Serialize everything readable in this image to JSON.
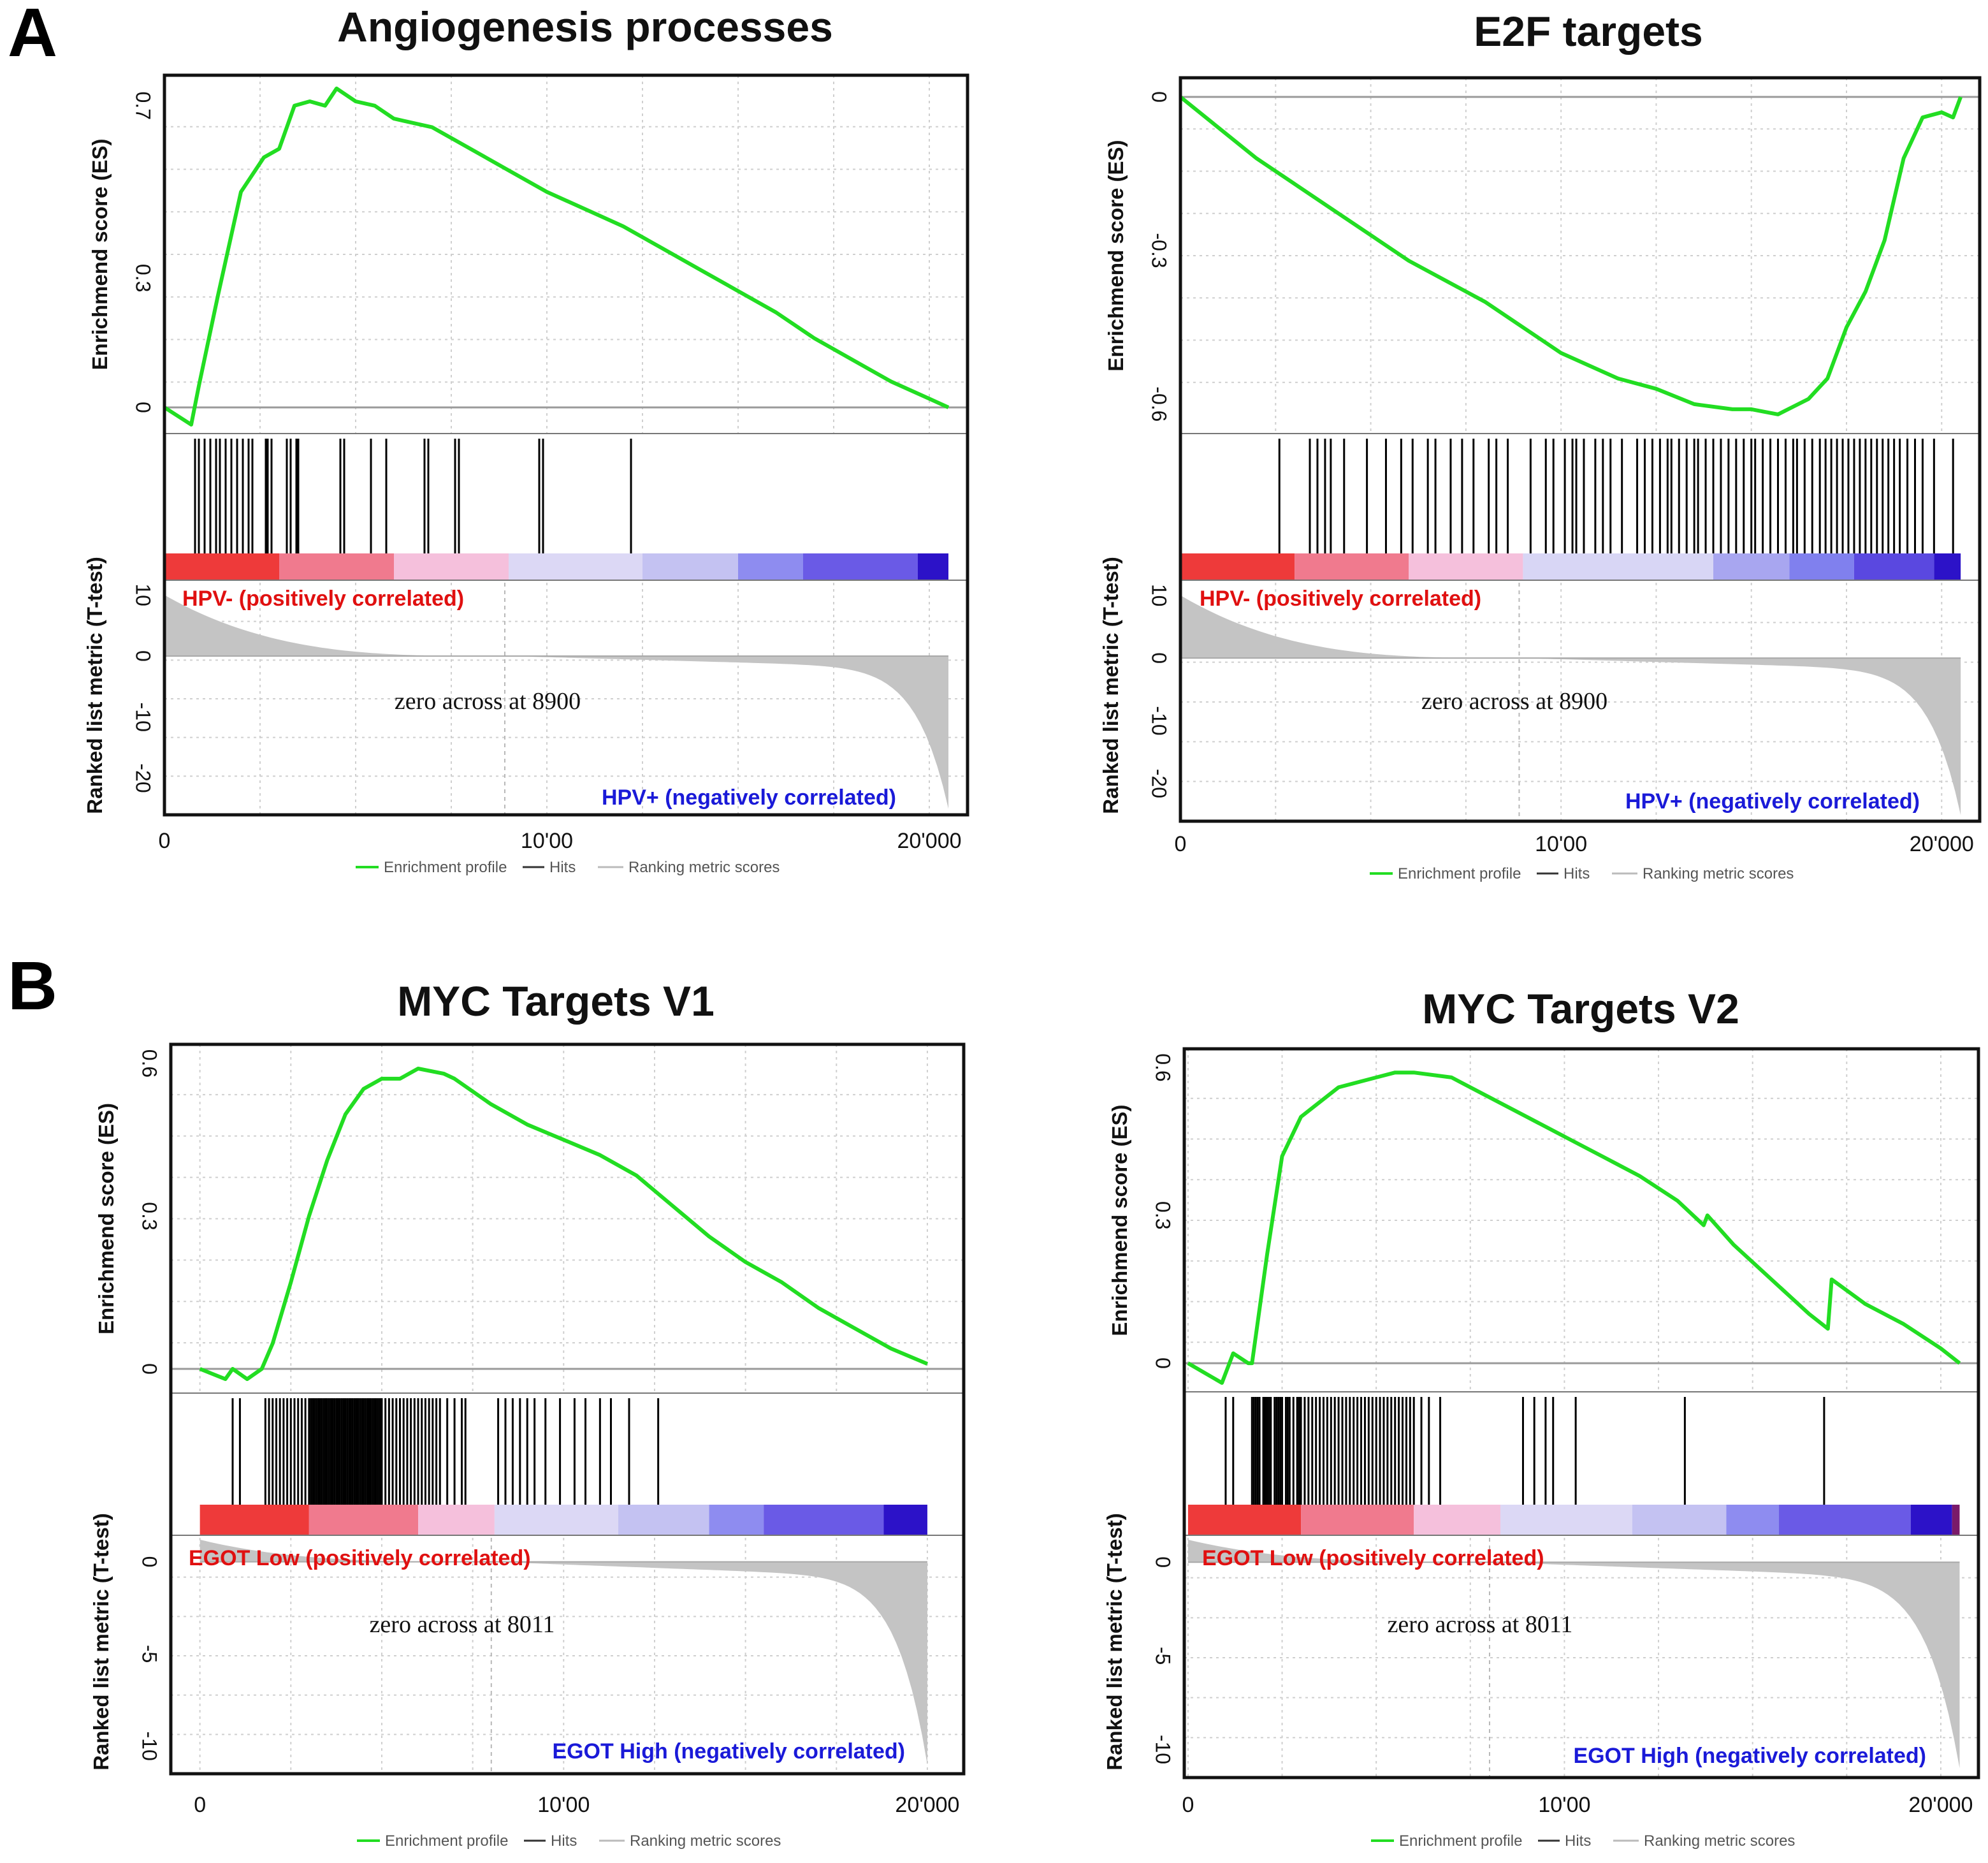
{
  "figure": {
    "panel_labels": [
      "A",
      "B"
    ],
    "legend": {
      "enrichment": "Enrichment profile",
      "hits": "Hits",
      "ranking": "Ranking metric scores"
    }
  },
  "colors": {
    "es_line": "#22dd22",
    "hit": "#000000",
    "metric_fill": "#c4c4c4",
    "pos_label": "#e01010",
    "neg_label": "#1a1ad8",
    "frame": "#111111",
    "grid": "#cfcfcf"
  },
  "chart_data": [
    {
      "type": "line",
      "title": "Angiogenesis processes",
      "ylabel_es": "Enrichmend  score (ES)",
      "ylabel_metric": "Ranked list metric (T-test)",
      "es_ticks": [
        {
          "v": 0,
          "label": "0"
        },
        {
          "v": 0.3,
          "label": "0.3"
        },
        {
          "v": 0.7,
          "label": "0.7"
        }
      ],
      "es_range": [
        -0.04,
        0.75
      ],
      "metric_ticks": [
        {
          "v": 10,
          "label": "10"
        },
        {
          "v": 0,
          "label": "0"
        },
        {
          "v": -10,
          "label": "-10"
        },
        {
          "v": -20,
          "label": "-20"
        }
      ],
      "metric_range": [
        -26,
        12
      ],
      "xlim": [
        0,
        21000
      ],
      "n_genes": 20500,
      "xticks": [
        {
          "v": 0,
          "label": "0"
        },
        {
          "v": 10000,
          "label": "10'00"
        },
        {
          "v": 20000,
          "label": "20'000"
        }
      ],
      "pos_label": "HPV- (positively correlated)",
      "neg_label": "HPV+ (negatively correlated)",
      "zero_cross": 8900,
      "zero_cross_label": "zero across at 8900",
      "metric_max": 10,
      "metric_min": -25,
      "es_curve": {
        "x": [
          0,
          700,
          900,
          1400,
          2000,
          2600,
          3000,
          3200,
          3400,
          3800,
          4200,
          4500,
          5000,
          5500,
          6000,
          7000,
          8000,
          9000,
          10000,
          11000,
          12000,
          13000,
          14000,
          15000,
          16000,
          17000,
          18000,
          19000,
          20000,
          20500
        ],
        "y": [
          0,
          -0.04,
          0.05,
          0.26,
          0.5,
          0.58,
          0.6,
          0.65,
          0.7,
          0.71,
          0.7,
          0.74,
          0.71,
          0.7,
          0.67,
          0.65,
          0.6,
          0.55,
          0.5,
          0.46,
          0.42,
          0.37,
          0.32,
          0.27,
          0.22,
          0.16,
          0.11,
          0.06,
          0.02,
          0
        ]
      },
      "hits": [
        800,
        900,
        1050,
        1200,
        1350,
        1450,
        1600,
        1750,
        1900,
        2050,
        2200,
        2300,
        2650,
        2700,
        2800,
        3200,
        3300,
        3450,
        3500,
        4600,
        4700,
        5400,
        5800,
        6800,
        6900,
        7600,
        7700,
        9800,
        9900,
        12200
      ],
      "colorbar": [
        {
          "from": 0,
          "to": 3000,
          "color": "#ee3a3a"
        },
        {
          "from": 3000,
          "to": 6000,
          "color": "#f07a8e"
        },
        {
          "from": 6000,
          "to": 9000,
          "color": "#f5c0dc"
        },
        {
          "from": 9000,
          "to": 12500,
          "color": "#dcd8f5"
        },
        {
          "from": 12500,
          "to": 15000,
          "color": "#c4c2f2"
        },
        {
          "from": 15000,
          "to": 16700,
          "color": "#8e8cf0"
        },
        {
          "from": 16700,
          "to": 19700,
          "color": "#6a5ae6"
        },
        {
          "from": 19700,
          "to": 20500,
          "color": "#2c12c8"
        }
      ]
    },
    {
      "type": "line",
      "title": "E2F targets",
      "ylabel_es": "Enrichmend  score (ES)",
      "ylabel_metric": "Ranked list metric (T-test)",
      "es_ticks": [
        {
          "v": 0,
          "label": "0"
        },
        {
          "v": -0.3,
          "label": "-0.3"
        },
        {
          "v": -0.6,
          "label": "-0.6"
        }
      ],
      "es_range": [
        -0.64,
        0.02
      ],
      "metric_ticks": [
        {
          "v": 10,
          "label": "10"
        },
        {
          "v": 0,
          "label": "0"
        },
        {
          "v": -10,
          "label": "-10"
        },
        {
          "v": -20,
          "label": "-20"
        }
      ],
      "metric_range": [
        -26,
        12
      ],
      "xlim": [
        0,
        21000
      ],
      "n_genes": 20500,
      "xticks": [
        {
          "v": 0,
          "label": "0"
        },
        {
          "v": 10000,
          "label": "10'00"
        },
        {
          "v": 20000,
          "label": "20'000"
        }
      ],
      "pos_label": "HPV- (positively correlated)",
      "neg_label": "HPV+ (negatively correlated)",
      "zero_cross": 8900,
      "zero_cross_label": "zero across at 8900",
      "metric_max": 10,
      "metric_min": -25,
      "es_curve": {
        "x": [
          0,
          2000,
          4000,
          6000,
          8000,
          10000,
          11500,
          12500,
          13500,
          14500,
          15000,
          15700,
          16500,
          17000,
          17500,
          18000,
          18500,
          19000,
          19500,
          20000,
          20300,
          20500
        ],
        "y": [
          0,
          -0.12,
          -0.22,
          -0.32,
          -0.4,
          -0.5,
          -0.55,
          -0.57,
          -0.6,
          -0.61,
          -0.61,
          -0.62,
          -0.59,
          -0.55,
          -0.45,
          -0.38,
          -0.28,
          -0.12,
          -0.04,
          -0.03,
          -0.04,
          0
        ]
      },
      "hits": [
        2600,
        3400,
        3600,
        3800,
        3950,
        4300,
        4900,
        5400,
        5800,
        6100,
        6500,
        6700,
        7100,
        7400,
        7700,
        8100,
        8300,
        8600,
        9200,
        9600,
        9800,
        10100,
        10300,
        10400,
        10600,
        10900,
        11100,
        11300,
        11600,
        12000,
        12200,
        12400,
        12600,
        12800,
        12900,
        13100,
        13300,
        13500,
        13600,
        13800,
        14000,
        14200,
        14400,
        14600,
        14800,
        15000,
        15100,
        15300,
        15500,
        15700,
        15900,
        16100,
        16200,
        16400,
        16600,
        16800,
        16950,
        17100,
        17250,
        17400,
        17550,
        17700,
        17850,
        18000,
        18150,
        18300,
        18450,
        18600,
        18750,
        18900,
        19100,
        19300,
        19500,
        19800,
        20300
      ],
      "colorbar": [
        {
          "from": 0,
          "to": 3000,
          "color": "#ee3a3a"
        },
        {
          "from": 3000,
          "to": 6000,
          "color": "#f07a8e"
        },
        {
          "from": 6000,
          "to": 9000,
          "color": "#f5c0dc"
        },
        {
          "from": 9000,
          "to": 14000,
          "color": "#d8d6f5"
        },
        {
          "from": 14000,
          "to": 16000,
          "color": "#a8a6f0"
        },
        {
          "from": 16000,
          "to": 17700,
          "color": "#8080ee"
        },
        {
          "from": 17700,
          "to": 19800,
          "color": "#5a48e0"
        },
        {
          "from": 19800,
          "to": 20500,
          "color": "#2c12c8"
        }
      ]
    },
    {
      "type": "line",
      "title": "MYC Targets V1",
      "ylabel_es": "Enrichmend  score (ES)",
      "ylabel_metric": "Ranked list metric (T-test)",
      "es_ticks": [
        {
          "v": 0,
          "label": "0"
        },
        {
          "v": 0.3,
          "label": "0.3"
        },
        {
          "v": 0.6,
          "label": "0.6"
        }
      ],
      "es_range": [
        -0.03,
        0.62
      ],
      "metric_ticks": [
        {
          "v": 0,
          "label": "0"
        },
        {
          "v": -5,
          "label": "-5"
        },
        {
          "v": -10,
          "label": "-10"
        }
      ],
      "metric_range": [
        -11.5,
        1.3
      ],
      "xlim": [
        -800,
        21000
      ],
      "n_genes": 20000,
      "xticks": [
        {
          "v": 0,
          "label": "0"
        },
        {
          "v": 10000,
          "label": "10'00"
        },
        {
          "v": 20000,
          "label": "20'000"
        }
      ],
      "pos_label": "EGOT Low (positively correlated)",
      "neg_label": "EGOT High (negatively correlated)",
      "zero_cross": 8011,
      "zero_cross_label": "zero across at 8011",
      "metric_max": 1.2,
      "metric_min": -11,
      "es_curve": {
        "x": [
          0,
          700,
          900,
          1300,
          1700,
          2000,
          2500,
          3000,
          3500,
          4000,
          4500,
          5000,
          5500,
          6000,
          6700,
          7000,
          8000,
          9000,
          10000,
          11000,
          12000,
          13000,
          14000,
          15000,
          16000,
          17000,
          18000,
          19000,
          20000
        ],
        "y": [
          0,
          -0.02,
          0.0,
          -0.02,
          0.0,
          0.05,
          0.17,
          0.3,
          0.41,
          0.5,
          0.55,
          0.57,
          0.57,
          0.59,
          0.58,
          0.57,
          0.52,
          0.48,
          0.45,
          0.42,
          0.38,
          0.32,
          0.26,
          0.21,
          0.17,
          0.12,
          0.08,
          0.04,
          0.01
        ]
      },
      "hits": [
        900,
        1100,
        1800,
        1900,
        2000,
        2100,
        2200,
        2300,
        2400,
        2500,
        2600,
        2700,
        2800,
        2900,
        3000,
        3050,
        3100,
        3150,
        3200,
        3250,
        3300,
        3350,
        3400,
        3450,
        3500,
        3550,
        3600,
        3650,
        3700,
        3750,
        3800,
        3850,
        3900,
        3950,
        4000,
        4050,
        4100,
        4150,
        4200,
        4250,
        4300,
        4350,
        4400,
        4450,
        4500,
        4550,
        4600,
        4650,
        4700,
        4750,
        4800,
        4850,
        4900,
        4950,
        5000,
        5100,
        5200,
        5300,
        5400,
        5500,
        5600,
        5700,
        5800,
        5900,
        6000,
        6100,
        6200,
        6300,
        6400,
        6500,
        6600,
        6800,
        7000,
        7200,
        7300,
        8200,
        8400,
        8600,
        8800,
        9000,
        9200,
        9500,
        9900,
        10300,
        10600,
        11000,
        11300,
        11800,
        12600
      ],
      "colorbar": [
        {
          "from": 0,
          "to": 3000,
          "color": "#ee3a3a"
        },
        {
          "from": 3000,
          "to": 6000,
          "color": "#f07a8e"
        },
        {
          "from": 6000,
          "to": 8100,
          "color": "#f5c0dc"
        },
        {
          "from": 8100,
          "to": 11500,
          "color": "#dcd8f5"
        },
        {
          "from": 11500,
          "to": 14000,
          "color": "#c4c2f2"
        },
        {
          "from": 14000,
          "to": 15500,
          "color": "#8e8cf0"
        },
        {
          "from": 15500,
          "to": 18800,
          "color": "#6a5ae6"
        },
        {
          "from": 18800,
          "to": 20000,
          "color": "#2c12c8"
        }
      ]
    },
    {
      "type": "line",
      "title": "MYC Targets V2",
      "ylabel_es": "Enrichmend  score (ES)",
      "ylabel_metric": "Ranked list metric (T-test)",
      "es_ticks": [
        {
          "v": 0,
          "label": "0"
        },
        {
          "v": 0.3,
          "label": "0.3"
        },
        {
          "v": 0.6,
          "label": "0.6"
        }
      ],
      "es_range": [
        -0.04,
        0.62
      ],
      "metric_ticks": [
        {
          "v": 0,
          "label": "0"
        },
        {
          "v": -5,
          "label": "-5"
        },
        {
          "v": -10,
          "label": "-10"
        }
      ],
      "metric_range": [
        -11.5,
        1.3
      ],
      "xlim": [
        -100,
        21000
      ],
      "n_genes": 20500,
      "xticks": [
        {
          "v": 0,
          "label": "0"
        },
        {
          "v": 10000,
          "label": "10'00"
        },
        {
          "v": 20000,
          "label": "20'000"
        }
      ],
      "pos_label": "EGOT Low (positively correlated)",
      "neg_label": "EGOT High (negatively correlated)",
      "zero_cross": 8011,
      "zero_cross_label": "zero across at 8011",
      "metric_max": 1.2,
      "metric_min": -11,
      "es_curve": {
        "x": [
          0,
          900,
          1200,
          1600,
          1700,
          2100,
          2500,
          3000,
          3500,
          4000,
          4500,
          5000,
          5500,
          6000,
          7000,
          8000,
          9000,
          10000,
          11000,
          12000,
          13000,
          13700,
          13800,
          14500,
          15500,
          16500,
          17000,
          17100,
          18000,
          19000,
          20000,
          20500
        ],
        "y": [
          0,
          -0.04,
          0.02,
          0.0,
          0.0,
          0.22,
          0.42,
          0.5,
          0.53,
          0.56,
          0.57,
          0.58,
          0.59,
          0.59,
          0.58,
          0.54,
          0.5,
          0.46,
          0.42,
          0.38,
          0.33,
          0.28,
          0.3,
          0.24,
          0.17,
          0.1,
          0.07,
          0.17,
          0.12,
          0.08,
          0.03,
          0
        ]
      },
      "hits": [
        1000,
        1200,
        1700,
        1750,
        1800,
        1850,
        1900,
        2000,
        2050,
        2100,
        2150,
        2200,
        2300,
        2350,
        2400,
        2450,
        2500,
        2600,
        2650,
        2700,
        2800,
        2900,
        2950,
        3000,
        3100,
        3200,
        3300,
        3400,
        3500,
        3600,
        3700,
        3800,
        3900,
        4000,
        4100,
        4200,
        4300,
        4400,
        4500,
        4600,
        4700,
        4800,
        4900,
        5000,
        5100,
        5200,
        5300,
        5400,
        5500,
        5600,
        5700,
        5800,
        5900,
        6000,
        6200,
        6400,
        6700,
        8900,
        9200,
        9500,
        9700,
        10300,
        13200,
        16900
      ],
      "colorbar": [
        {
          "from": 0,
          "to": 3000,
          "color": "#ee3a3a"
        },
        {
          "from": 3000,
          "to": 6000,
          "color": "#f07a8e"
        },
        {
          "from": 6000,
          "to": 8300,
          "color": "#f5c0dc"
        },
        {
          "from": 8300,
          "to": 11800,
          "color": "#dcd8f5"
        },
        {
          "from": 11800,
          "to": 14300,
          "color": "#c4c2f2"
        },
        {
          "from": 14300,
          "to": 15700,
          "color": "#8e8cf0"
        },
        {
          "from": 15700,
          "to": 19200,
          "color": "#6a5ae6"
        },
        {
          "from": 19200,
          "to": 20300,
          "color": "#2c12c8"
        },
        {
          "from": 20300,
          "to": 20500,
          "color": "#7a1a6a"
        }
      ]
    }
  ]
}
